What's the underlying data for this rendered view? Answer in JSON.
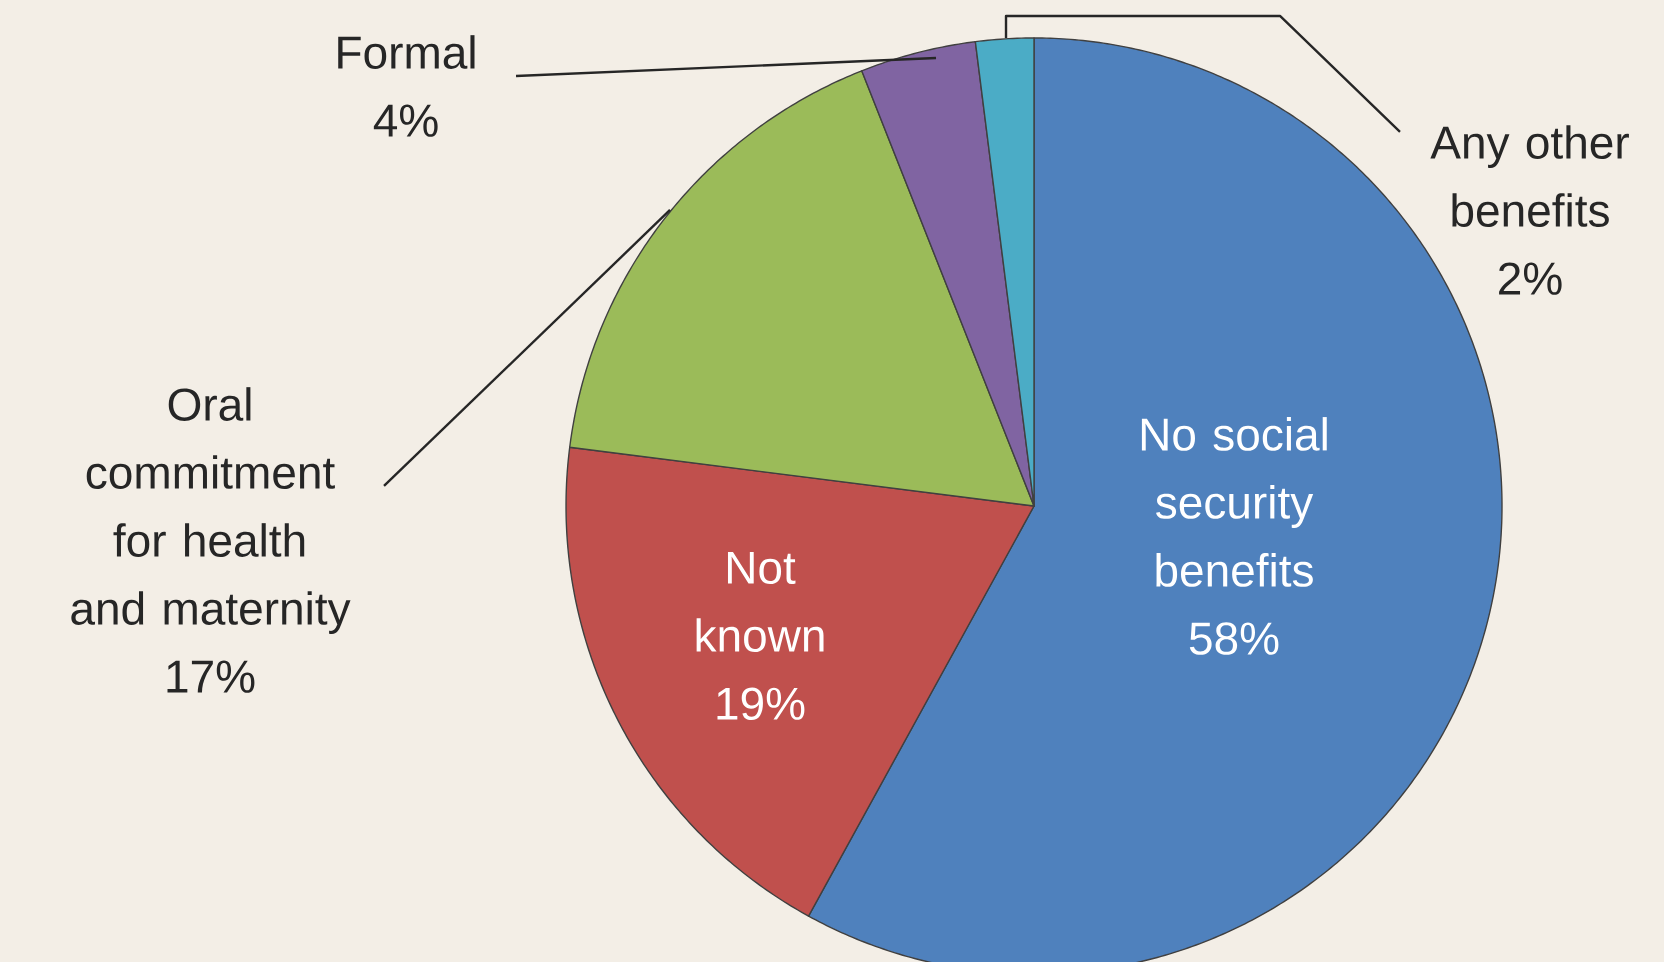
{
  "chart_data": {
    "type": "pie",
    "categories": [
      "No social security benefits",
      "Not known",
      "Oral commitment for health and maternity",
      "Formal",
      "Any other benefits"
    ],
    "values": [
      58,
      19,
      17,
      4,
      2
    ],
    "value_labels": [
      "58%",
      "19%",
      "17%",
      "4%",
      "2%"
    ],
    "colors": [
      "#4f81bd",
      "#c0504d",
      "#9bbb59",
      "#8064a2",
      "#4bacc6"
    ]
  }
}
